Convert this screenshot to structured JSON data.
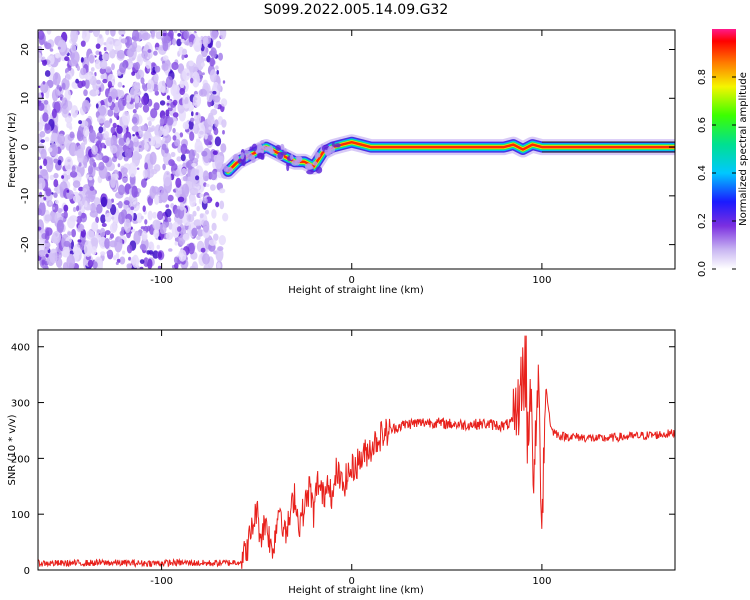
{
  "title": "S099.2022.005.14.09.G32",
  "chart_data": [
    {
      "type": "heatmap",
      "xlabel": "Height of straight line (km)",
      "ylabel": "Frequency (Hz)",
      "xlim": [
        -165,
        170
      ],
      "ylim": [
        -25,
        24
      ],
      "xticks": [
        -100,
        0,
        100
      ],
      "xtick_labels": [
        "-100",
        "0",
        "100"
      ],
      "yticks": [
        -20,
        -10,
        0,
        10,
        20
      ],
      "ytick_labels": [
        "-20",
        "-10",
        "0",
        "10",
        "20"
      ],
      "grid": false,
      "colorbar": {
        "label": "Normalized spectral amplitude",
        "range": [
          0,
          1
        ],
        "ticks": [
          0.0,
          0.2,
          0.4,
          0.6,
          0.8
        ],
        "tick_labels": [
          "0.0",
          "0.2",
          "0.4",
          "0.6",
          "0.8"
        ],
        "colormap": "rainbow"
      },
      "features": {
        "noise_region_x": [
          -165,
          -65
        ],
        "signal_track": {
          "x": [
            -65,
            -60,
            -55,
            -50,
            -45,
            -40,
            -35,
            -30,
            -25,
            -20,
            -15,
            -10,
            -5,
            0,
            5,
            10,
            20,
            40,
            60,
            80,
            85,
            90,
            95,
            100,
            120,
            140,
            170
          ],
          "y": [
            -5,
            -3,
            -2,
            -1,
            0,
            -1,
            -2,
            -3,
            -3,
            -4,
            -1,
            0,
            0.5,
            1,
            0.5,
            0,
            0,
            0,
            0,
            0,
            0.5,
            -0.5,
            0.5,
            0,
            0,
            0,
            0
          ]
        }
      }
    },
    {
      "type": "line",
      "xlabel": "Height of straight line (km)",
      "ylabel": "SNR (10 * v/v)",
      "xlim": [
        -165,
        170
      ],
      "ylim": [
        0,
        430
      ],
      "xticks": [
        -100,
        0,
        100
      ],
      "xtick_labels": [
        "-100",
        "0",
        "100"
      ],
      "yticks": [
        0,
        100,
        200,
        300,
        400
      ],
      "ytick_labels": [
        "0",
        "100",
        "200",
        "300",
        "400"
      ],
      "grid": false,
      "series": [
        {
          "color": "#e8211c",
          "x": [
            -165,
            -150,
            -130,
            -110,
            -90,
            -75,
            -65,
            -58,
            -55,
            -52,
            -50,
            -48,
            -45,
            -42,
            -40,
            -38,
            -35,
            -32,
            -30,
            -28,
            -25,
            -22,
            -20,
            -18,
            -15,
            -12,
            -10,
            -8,
            -5,
            -2,
            0,
            5,
            10,
            15,
            20,
            25,
            30,
            40,
            50,
            60,
            70,
            80,
            85,
            88,
            90,
            92,
            94,
            96,
            98,
            100,
            102,
            105,
            110,
            120,
            130,
            140,
            150,
            160,
            170
          ],
          "y": [
            12,
            12,
            13,
            12,
            13,
            12,
            13,
            15,
            40,
            80,
            110,
            60,
            90,
            30,
            70,
            120,
            60,
            100,
            140,
            80,
            110,
            150,
            100,
            160,
            130,
            170,
            120,
            180,
            150,
            170,
            180,
            200,
            220,
            240,
            250,
            258,
            262,
            265,
            262,
            260,
            262,
            258,
            265,
            300,
            360,
            230,
            310,
            150,
            350,
            90,
            330,
            250,
            240,
            238,
            235,
            238,
            240,
            242,
            245
          ]
        }
      ]
    }
  ]
}
